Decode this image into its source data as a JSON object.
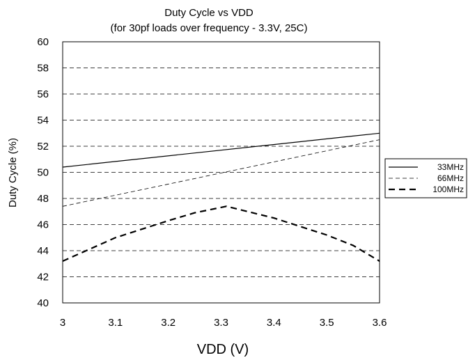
{
  "chart_data": {
    "type": "line",
    "title": "Duty Cycle vs VDD",
    "subtitle": "(for 30pf loads over frequency - 3.3V, 25C)",
    "xlabel": "VDD (V)",
    "ylabel": "Duty Cycle (%)",
    "xlim": [
      3.0,
      3.6
    ],
    "ylim": [
      40,
      60
    ],
    "x_ticks": [
      "3",
      "3.1",
      "3.2",
      "3.3",
      "3.4",
      "3.5",
      "3.6"
    ],
    "y_ticks": [
      "40",
      "42",
      "44",
      "46",
      "48",
      "50",
      "52",
      "54",
      "56",
      "58",
      "60"
    ],
    "grid": "horizontal dashed",
    "legend_position": "right",
    "series": [
      {
        "name": "33MHz",
        "style": "solid",
        "x": [
          3.0,
          3.6
        ],
        "y": [
          50.4,
          53.0
        ]
      },
      {
        "name": "66MHz",
        "style": "thin dashed",
        "x": [
          3.0,
          3.6
        ],
        "y": [
          47.4,
          52.5
        ]
      },
      {
        "name": "100MHz",
        "style": "thick dashed",
        "x": [
          3.0,
          3.1,
          3.2,
          3.25,
          3.31,
          3.4,
          3.5,
          3.55,
          3.6
        ],
        "y": [
          43.2,
          45.0,
          46.3,
          46.9,
          47.4,
          46.5,
          45.2,
          44.4,
          43.2
        ]
      }
    ]
  }
}
